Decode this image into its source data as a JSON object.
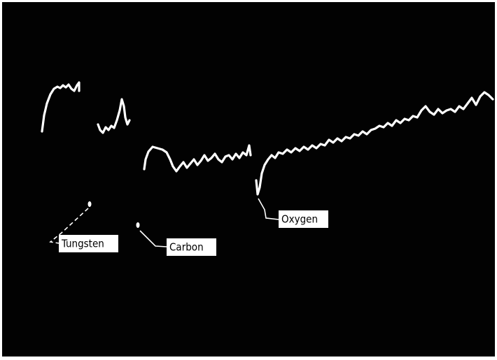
{
  "labels": {
    "tungsten": "Tungsten",
    "carbon": "Carbon",
    "oxygen": "Oxygen"
  }
}
